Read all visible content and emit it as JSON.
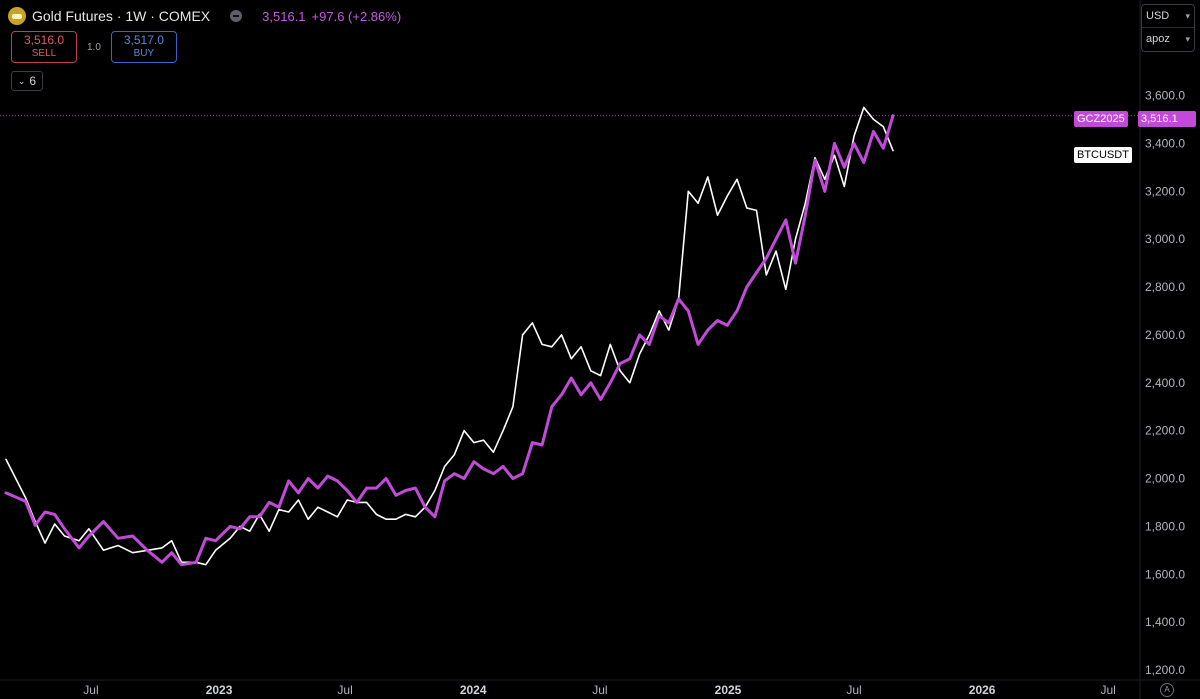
{
  "header": {
    "title": "Gold Futures · 1W · COMEX",
    "price": "3,516.1",
    "change": "+97.6 (+2.86%)"
  },
  "trade": {
    "sell_value": "3,516.0",
    "sell_label": "SELL",
    "spread": "1.0",
    "buy_value": "3,517.0",
    "buy_label": "BUY"
  },
  "indicators_toggle": {
    "count": "6"
  },
  "scale": {
    "currency": "USD",
    "mode": "apoz"
  },
  "labels": {
    "gc_symbol": "GCZ2025",
    "gc_value": "3,516.1",
    "btc_symbol": "BTCUSDT"
  },
  "corner_label": "A",
  "colors": {
    "gold_line": "#c24ad8",
    "btc_line": "#ffffff",
    "background": "#000000"
  },
  "chart_data": {
    "type": "line",
    "y_axis": {
      "range": [
        1200,
        3700
      ],
      "ticks": [
        1200,
        1400,
        1600,
        1800,
        2000,
        2200,
        2400,
        2600,
        2800,
        3000,
        3200,
        3400,
        3600
      ],
      "tick_labels": [
        "1,200.0",
        "1,400.0",
        "1,600.0",
        "1,800.0",
        "2,000.0",
        "2,200.0",
        "2,400.0",
        "2,600.0",
        "2,800.0",
        "3,000.0",
        "3,200.0",
        "3,400.0",
        "3,600.0"
      ]
    },
    "x_axis": {
      "range": [
        "2022-03-01",
        "2026-12-15"
      ],
      "ticks": [
        {
          "date": "2022-07-01",
          "label": "Jul",
          "major": false
        },
        {
          "date": "2023-01-01",
          "label": "2023",
          "major": true
        },
        {
          "date": "2023-07-01",
          "label": "Jul",
          "major": false
        },
        {
          "date": "2024-01-01",
          "label": "2024",
          "major": true
        },
        {
          "date": "2024-07-01",
          "label": "Jul",
          "major": false
        },
        {
          "date": "2025-01-01",
          "label": "2025",
          "major": true
        },
        {
          "date": "2025-07-01",
          "label": "Jul",
          "major": false
        },
        {
          "date": "2026-01-01",
          "label": "2026",
          "major": true
        },
        {
          "date": "2026-07-01",
          "label": "Jul",
          "major": false
        }
      ]
    },
    "series": [
      {
        "name": "GCZ2025",
        "color": "#c24ad8",
        "points": [
          [
            "2022-03-01",
            1940
          ],
          [
            "2022-03-29",
            1905
          ],
          [
            "2022-04-12",
            1805
          ],
          [
            "2022-04-26",
            1860
          ],
          [
            "2022-05-10",
            1850
          ],
          [
            "2022-05-24",
            1790
          ],
          [
            "2022-06-14",
            1710
          ],
          [
            "2022-06-28",
            1760
          ],
          [
            "2022-07-19",
            1820
          ],
          [
            "2022-08-09",
            1750
          ],
          [
            "2022-08-30",
            1760
          ],
          [
            "2022-09-20",
            1700
          ],
          [
            "2022-10-11",
            1650
          ],
          [
            "2022-10-25",
            1690
          ],
          [
            "2022-11-08",
            1640
          ],
          [
            "2022-11-29",
            1650
          ],
          [
            "2022-12-13",
            1750
          ],
          [
            "2022-12-27",
            1740
          ],
          [
            "2023-01-17",
            1800
          ],
          [
            "2023-01-31",
            1790
          ],
          [
            "2023-02-14",
            1840
          ],
          [
            "2023-02-28",
            1840
          ],
          [
            "2023-03-14",
            1900
          ],
          [
            "2023-03-28",
            1880
          ],
          [
            "2023-04-11",
            1990
          ],
          [
            "2023-04-25",
            1940
          ],
          [
            "2023-05-09",
            2000
          ],
          [
            "2023-05-23",
            1960
          ],
          [
            "2023-06-06",
            2010
          ],
          [
            "2023-06-20",
            1990
          ],
          [
            "2023-07-04",
            1950
          ],
          [
            "2023-07-18",
            1900
          ],
          [
            "2023-08-01",
            1960
          ],
          [
            "2023-08-15",
            1960
          ],
          [
            "2023-08-29",
            2000
          ],
          [
            "2023-09-12",
            1930
          ],
          [
            "2023-09-26",
            1950
          ],
          [
            "2023-10-10",
            1960
          ],
          [
            "2023-10-24",
            1880
          ],
          [
            "2023-11-07",
            1840
          ],
          [
            "2023-11-21",
            1990
          ],
          [
            "2023-12-05",
            2020
          ],
          [
            "2023-12-19",
            2000
          ],
          [
            "2024-01-02",
            2070
          ],
          [
            "2024-01-16",
            2040
          ],
          [
            "2024-01-30",
            2020
          ],
          [
            "2024-02-13",
            2050
          ],
          [
            "2024-02-27",
            2000
          ],
          [
            "2024-03-12",
            2020
          ],
          [
            "2024-03-26",
            2150
          ],
          [
            "2024-04-09",
            2140
          ],
          [
            "2024-04-23",
            2300
          ],
          [
            "2024-05-07",
            2350
          ],
          [
            "2024-05-21",
            2420
          ],
          [
            "2024-06-04",
            2350
          ],
          [
            "2024-06-18",
            2400
          ],
          [
            "2024-07-02",
            2330
          ],
          [
            "2024-07-16",
            2400
          ],
          [
            "2024-07-30",
            2480
          ],
          [
            "2024-08-13",
            2500
          ],
          [
            "2024-08-27",
            2600
          ],
          [
            "2024-09-10",
            2560
          ],
          [
            "2024-09-24",
            2680
          ],
          [
            "2024-10-08",
            2650
          ],
          [
            "2024-10-22",
            2750
          ],
          [
            "2024-11-05",
            2700
          ],
          [
            "2024-11-19",
            2560
          ],
          [
            "2024-12-03",
            2620
          ],
          [
            "2024-12-17",
            2660
          ],
          [
            "2024-12-31",
            2640
          ],
          [
            "2025-01-14",
            2700
          ],
          [
            "2025-01-28",
            2800
          ],
          [
            "2025-02-11",
            2860
          ],
          [
            "2025-02-25",
            2920
          ],
          [
            "2025-03-11",
            3000
          ],
          [
            "2025-03-25",
            3080
          ],
          [
            "2025-04-08",
            2900
          ],
          [
            "2025-04-22",
            3100
          ],
          [
            "2025-05-06",
            3330
          ],
          [
            "2025-05-20",
            3200
          ],
          [
            "2025-06-03",
            3400
          ],
          [
            "2025-06-17",
            3300
          ],
          [
            "2025-07-01",
            3400
          ],
          [
            "2025-07-15",
            3320
          ],
          [
            "2025-07-29",
            3450
          ],
          [
            "2025-08-12",
            3380
          ],
          [
            "2025-08-26",
            3516
          ]
        ]
      },
      {
        "name": "BTCUSDT",
        "color": "#ffffff",
        "points": [
          [
            "2022-03-01",
            2080
          ],
          [
            "2022-03-29",
            1920
          ],
          [
            "2022-04-12",
            1820
          ],
          [
            "2022-04-26",
            1730
          ],
          [
            "2022-05-10",
            1810
          ],
          [
            "2022-05-24",
            1760
          ],
          [
            "2022-06-14",
            1740
          ],
          [
            "2022-06-28",
            1790
          ],
          [
            "2022-07-19",
            1700
          ],
          [
            "2022-08-09",
            1720
          ],
          [
            "2022-08-30",
            1690
          ],
          [
            "2022-09-20",
            1700
          ],
          [
            "2022-10-11",
            1710
          ],
          [
            "2022-10-25",
            1740
          ],
          [
            "2022-11-08",
            1650
          ],
          [
            "2022-11-29",
            1650
          ],
          [
            "2022-12-13",
            1640
          ],
          [
            "2022-12-27",
            1700
          ],
          [
            "2023-01-17",
            1750
          ],
          [
            "2023-01-31",
            1800
          ],
          [
            "2023-02-14",
            1780
          ],
          [
            "2023-02-28",
            1850
          ],
          [
            "2023-03-14",
            1780
          ],
          [
            "2023-03-28",
            1870
          ],
          [
            "2023-04-11",
            1860
          ],
          [
            "2023-04-25",
            1910
          ],
          [
            "2023-05-09",
            1830
          ],
          [
            "2023-05-23",
            1880
          ],
          [
            "2023-06-06",
            1860
          ],
          [
            "2023-06-20",
            1840
          ],
          [
            "2023-07-04",
            1910
          ],
          [
            "2023-07-18",
            1900
          ],
          [
            "2023-08-01",
            1900
          ],
          [
            "2023-08-15",
            1850
          ],
          [
            "2023-08-29",
            1830
          ],
          [
            "2023-09-12",
            1830
          ],
          [
            "2023-09-26",
            1850
          ],
          [
            "2023-10-10",
            1840
          ],
          [
            "2023-10-24",
            1880
          ],
          [
            "2023-11-07",
            1950
          ],
          [
            "2023-11-21",
            2050
          ],
          [
            "2023-12-05",
            2100
          ],
          [
            "2023-12-19",
            2200
          ],
          [
            "2024-01-02",
            2150
          ],
          [
            "2024-01-16",
            2160
          ],
          [
            "2024-01-30",
            2110
          ],
          [
            "2024-02-13",
            2200
          ],
          [
            "2024-02-27",
            2300
          ],
          [
            "2024-03-12",
            2600
          ],
          [
            "2024-03-26",
            2650
          ],
          [
            "2024-04-09",
            2560
          ],
          [
            "2024-04-23",
            2550
          ],
          [
            "2024-05-07",
            2600
          ],
          [
            "2024-05-21",
            2500
          ],
          [
            "2024-06-04",
            2550
          ],
          [
            "2024-06-18",
            2450
          ],
          [
            "2024-07-02",
            2430
          ],
          [
            "2024-07-16",
            2560
          ],
          [
            "2024-07-30",
            2450
          ],
          [
            "2024-08-13",
            2400
          ],
          [
            "2024-08-27",
            2520
          ],
          [
            "2024-09-10",
            2600
          ],
          [
            "2024-09-24",
            2700
          ],
          [
            "2024-10-08",
            2620
          ],
          [
            "2024-10-22",
            2750
          ],
          [
            "2024-11-05",
            3200
          ],
          [
            "2024-11-19",
            3150
          ],
          [
            "2024-12-03",
            3260
          ],
          [
            "2024-12-17",
            3100
          ],
          [
            "2024-12-31",
            3180
          ],
          [
            "2025-01-14",
            3250
          ],
          [
            "2025-01-28",
            3130
          ],
          [
            "2025-02-11",
            3120
          ],
          [
            "2025-02-25",
            2850
          ],
          [
            "2025-03-11",
            2950
          ],
          [
            "2025-03-25",
            2790
          ],
          [
            "2025-04-08",
            3000
          ],
          [
            "2025-04-22",
            3150
          ],
          [
            "2025-05-06",
            3340
          ],
          [
            "2025-05-20",
            3250
          ],
          [
            "2025-06-03",
            3350
          ],
          [
            "2025-06-17",
            3220
          ],
          [
            "2025-07-01",
            3430
          ],
          [
            "2025-07-15",
            3550
          ],
          [
            "2025-07-29",
            3500
          ],
          [
            "2025-08-12",
            3470
          ],
          [
            "2025-08-26",
            3370
          ]
        ]
      }
    ],
    "last_price_line": {
      "value": 3516.1,
      "color": "#c24ad8"
    }
  }
}
